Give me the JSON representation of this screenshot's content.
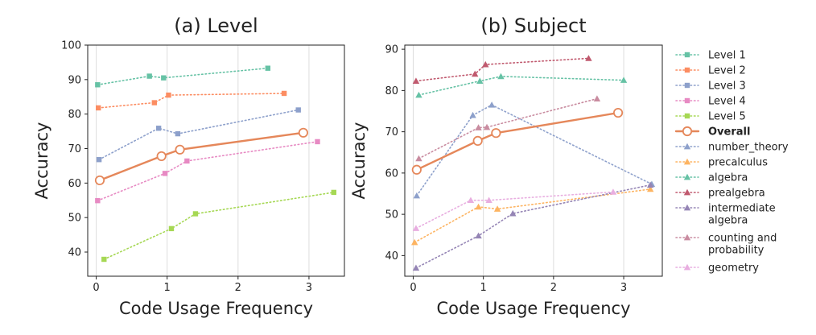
{
  "chart_data": [
    {
      "type": "line",
      "title": "(a) Level",
      "xlabel": "Code Usage Frequency",
      "ylabel": "Accuracy",
      "xlim": [
        -0.12,
        3.5
      ],
      "ylim": [
        33,
        100
      ],
      "xticks": [
        "0",
        "1",
        "2",
        "3"
      ],
      "yticks": [
        "40",
        "50",
        "60",
        "70",
        "80",
        "90",
        "100"
      ],
      "grid": "vertical",
      "series": [
        {
          "name": "Level 1",
          "color": "#66c2a5",
          "marker": "square",
          "style": "dotted",
          "x": [
            0.02,
            0.75,
            0.95,
            2.42
          ],
          "y": [
            88.5,
            91.0,
            90.5,
            93.3
          ]
        },
        {
          "name": "Level 2",
          "color": "#fc8d62",
          "marker": "square",
          "style": "dotted",
          "x": [
            0.03,
            0.82,
            1.02,
            2.65
          ],
          "y": [
            81.8,
            83.3,
            85.5,
            86.0
          ]
        },
        {
          "name": "Level 3",
          "color": "#8da0cb",
          "marker": "square",
          "style": "dotted",
          "x": [
            0.04,
            0.88,
            1.15,
            2.85
          ],
          "y": [
            66.8,
            75.9,
            74.3,
            81.2
          ]
        },
        {
          "name": "Level 4",
          "color": "#e78ac3",
          "marker": "square",
          "style": "dotted",
          "x": [
            0.02,
            0.97,
            1.28,
            3.12
          ],
          "y": [
            54.9,
            62.8,
            66.4,
            72.0
          ]
        },
        {
          "name": "Level 5",
          "color": "#a6d854",
          "marker": "square",
          "style": "dotted",
          "x": [
            0.11,
            1.06,
            1.4,
            3.35
          ],
          "y": [
            37.9,
            46.8,
            51.1,
            57.3
          ]
        },
        {
          "name": "Overall",
          "color": "#e5875a",
          "marker": "circle",
          "style": "solid",
          "x": [
            0.05,
            0.92,
            1.18,
            2.92
          ],
          "y": [
            60.8,
            67.8,
            69.7,
            74.6
          ]
        }
      ]
    },
    {
      "type": "line",
      "title": "(b) Subject",
      "xlabel": "Code Usage Frequency",
      "ylabel": "Accuracy",
      "xlim": [
        -0.12,
        3.55
      ],
      "ylim": [
        35,
        91
      ],
      "xticks": [
        "0",
        "1",
        "2",
        "3"
      ],
      "yticks": [
        "40",
        "50",
        "60",
        "70",
        "80",
        "90"
      ],
      "grid": "vertical",
      "series": [
        {
          "name": "number_theory",
          "color": "#8da0cb",
          "marker": "triangle",
          "style": "dotted",
          "x": [
            0.05,
            0.85,
            1.12,
            3.4
          ],
          "y": [
            54.5,
            74.0,
            76.5,
            57.3
          ]
        },
        {
          "name": "precalculus",
          "color": "#fdb462",
          "marker": "triangle",
          "style": "dotted",
          "x": [
            0.02,
            0.93,
            1.2,
            3.38
          ],
          "y": [
            43.2,
            51.8,
            51.3,
            56.1
          ]
        },
        {
          "name": "algebra",
          "color": "#66c2a5",
          "marker": "triangle",
          "style": "dotted",
          "x": [
            0.08,
            0.95,
            1.25,
            3.0
          ],
          "y": [
            78.9,
            82.3,
            83.4,
            82.5
          ]
        },
        {
          "name": "prealgebra",
          "color": "#c0596e",
          "marker": "triangle",
          "style": "dotted",
          "x": [
            0.04,
            0.88,
            1.03,
            2.5
          ],
          "y": [
            82.3,
            84.0,
            86.3,
            87.8
          ]
        },
        {
          "name": "intermediate algebra",
          "color": "#9585b5",
          "marker": "triangle",
          "style": "dotted",
          "x": [
            0.04,
            0.93,
            1.42,
            3.38
          ],
          "y": [
            37.0,
            44.8,
            50.2,
            57.1
          ]
        },
        {
          "name": "counting and probability",
          "color": "#c98ca0",
          "marker": "triangle",
          "style": "dotted",
          "x": [
            0.08,
            0.93,
            1.05,
            2.62
          ],
          "y": [
            63.5,
            71.0,
            71.1,
            78.0
          ]
        },
        {
          "name": "geometry",
          "color": "#e8aee0",
          "marker": "triangle",
          "style": "dotted",
          "x": [
            0.04,
            0.82,
            1.08,
            2.85
          ],
          "y": [
            46.6,
            53.4,
            53.4,
            55.4
          ]
        },
        {
          "name": "Overall",
          "color": "#e5875a",
          "marker": "circle",
          "style": "solid",
          "x": [
            0.05,
            0.92,
            1.18,
            2.92
          ],
          "y": [
            60.8,
            67.8,
            69.7,
            74.6
          ]
        }
      ]
    }
  ],
  "legend": {
    "placement": "right",
    "entries": [
      {
        "label": "Level 1",
        "color": "#66c2a5",
        "marker": "square",
        "style": "dotted"
      },
      {
        "label": "Level 2",
        "color": "#fc8d62",
        "marker": "square",
        "style": "dotted"
      },
      {
        "label": "Level 3",
        "color": "#8da0cb",
        "marker": "square",
        "style": "dotted"
      },
      {
        "label": "Level 4",
        "color": "#e78ac3",
        "marker": "square",
        "style": "dotted"
      },
      {
        "label": "Level 5",
        "color": "#a6d854",
        "marker": "square",
        "style": "dotted"
      },
      {
        "label": "Overall",
        "color": "#e5875a",
        "marker": "circle",
        "style": "solid",
        "bold": true
      },
      {
        "label": "number_theory",
        "color": "#8da0cb",
        "marker": "triangle",
        "style": "dotted"
      },
      {
        "label": "precalculus",
        "color": "#fdb462",
        "marker": "triangle",
        "style": "dotted"
      },
      {
        "label": "algebra",
        "color": "#66c2a5",
        "marker": "triangle",
        "style": "dotted"
      },
      {
        "label": "prealgebra",
        "color": "#c0596e",
        "marker": "triangle",
        "style": "dotted"
      },
      {
        "label": [
          "intermediate",
          "algebra"
        ],
        "color": "#9585b5",
        "marker": "triangle",
        "style": "dotted"
      },
      {
        "label": [
          "counting and",
          "probability"
        ],
        "color": "#c98ca0",
        "marker": "triangle",
        "style": "dotted"
      },
      {
        "label": "geometry",
        "color": "#e8aee0",
        "marker": "triangle",
        "style": "dotted"
      }
    ]
  }
}
